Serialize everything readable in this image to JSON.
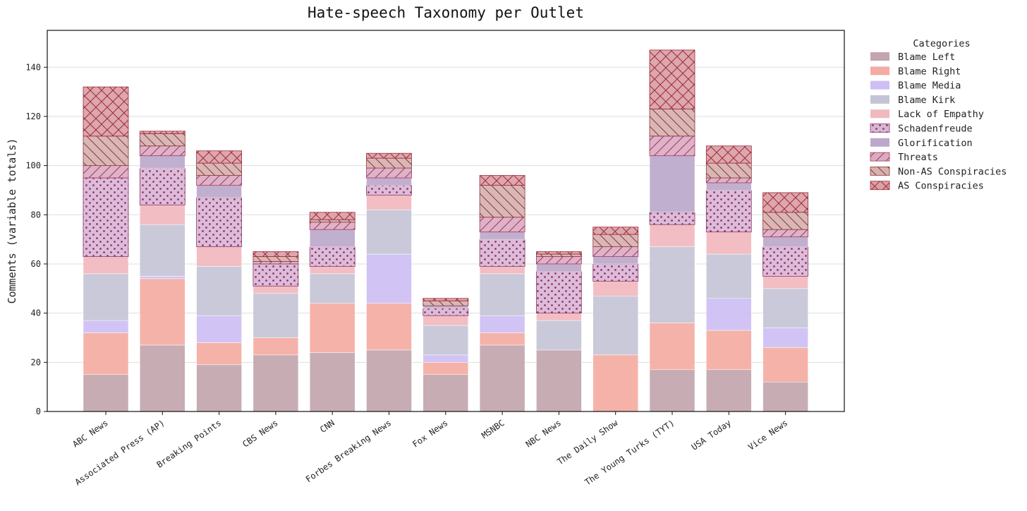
{
  "chart_data": {
    "type": "bar",
    "stacked": true,
    "title": "Hate-speech Taxonomy per Outlet",
    "xlabel": "",
    "ylabel": "Comments (variable totals)",
    "ylim": [
      0,
      155
    ],
    "yticks": [
      0,
      20,
      40,
      60,
      80,
      100,
      120,
      140
    ],
    "grid": "horizontal",
    "legend": {
      "title": "Categories",
      "placement": "outside-top-right"
    },
    "categories": [
      "ABC News",
      "Associated Press (AP)",
      "Breaking Points",
      "CBS News",
      "CNN",
      "Forbes Breaking News",
      "Fox News",
      "MSNBC",
      "NBC News",
      "The Daily Show",
      "The Young Turks (TYT)",
      "USA Today",
      "Vice News"
    ],
    "series": [
      {
        "name": "Blame Left",
        "color": "#c2a5ad",
        "pattern": "none",
        "values": [
          15,
          27,
          19,
          23,
          24,
          25,
          15,
          27,
          25,
          0,
          17,
          17,
          12
        ]
      },
      {
        "name": "Blame Right",
        "color": "#f4aba2",
        "pattern": "none",
        "values": [
          17,
          27,
          9,
          7,
          20,
          19,
          5,
          5,
          0,
          23,
          19,
          16,
          14
        ]
      },
      {
        "name": "Blame Media",
        "color": "#cdbff3",
        "pattern": "none",
        "values": [
          5,
          1,
          11,
          0,
          0,
          20,
          3,
          7,
          0,
          0,
          0,
          13,
          8
        ]
      },
      {
        "name": "Blame Kirk",
        "color": "#c4c4d6",
        "pattern": "none",
        "values": [
          19,
          21,
          20,
          18,
          12,
          18,
          12,
          17,
          12,
          24,
          31,
          18,
          16
        ]
      },
      {
        "name": "Lack of Empathy",
        "color": "#f1b8be",
        "pattern": "none",
        "values": [
          7,
          8,
          8,
          3,
          3,
          6,
          4,
          3,
          3,
          6,
          9,
          9,
          5
        ]
      },
      {
        "name": "Schadenfreude",
        "color": "#dab5d7",
        "pattern": "dots",
        "values": [
          32,
          15,
          20,
          9,
          8,
          4,
          3,
          11,
          17,
          7,
          5,
          17,
          12
        ]
      },
      {
        "name": "Glorification",
        "color": "#bca8cb",
        "pattern": "none",
        "values": [
          0,
          5,
          5,
          0,
          7,
          3,
          1,
          3,
          3,
          3,
          23,
          3,
          4
        ]
      },
      {
        "name": "Threats",
        "color": "#dbabc4",
        "pattern": "diag",
        "values": [
          5,
          4,
          4,
          1,
          3,
          4,
          0,
          6,
          3,
          4,
          8,
          2,
          3
        ]
      },
      {
        "name": "Non-AS Conspiracies",
        "color": "#d6b1b0",
        "pattern": "backdiag",
        "values": [
          12,
          5,
          5,
          2,
          1,
          4,
          2,
          13,
          1,
          5,
          11,
          6,
          7
        ]
      },
      {
        "name": "AS Conspiracies",
        "color": "#d9a0a6",
        "pattern": "cross",
        "values": [
          20,
          1,
          5,
          2,
          3,
          2,
          1,
          4,
          1,
          3,
          24,
          7,
          8
        ]
      }
    ]
  }
}
